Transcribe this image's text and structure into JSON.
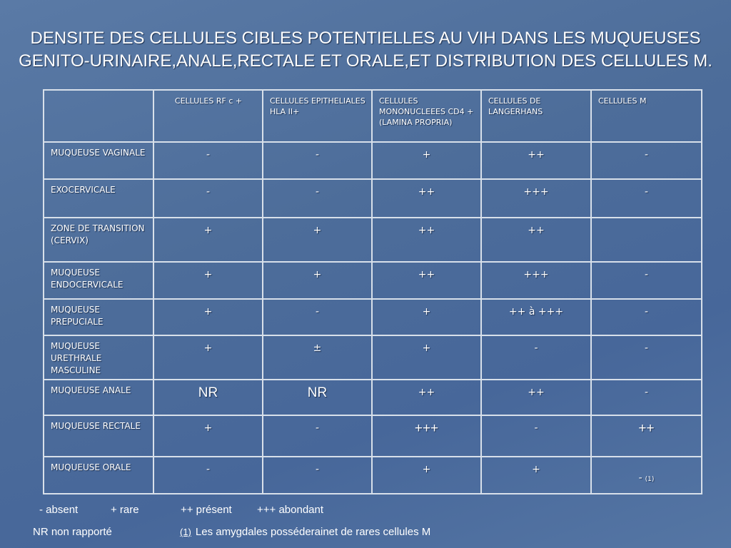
{
  "title": {
    "line1": "DENSITE DES CELLULES CIBLES POTENTIELLES AU VIH DANS LES MUQUEUSES",
    "line2": "GENITO-URINAIRE,ANALE,RECTALE ET ORALE,ET DISTRIBUTION DES CELLULES M."
  },
  "table": {
    "headers": [
      "",
      "CELLULES RF c +",
      "CELLULES EPITHELIALES HLA II+",
      "CELLULES MONONUCLEEES CD4 + (LAMINA PROPRIA)",
      "CELLULES DE LANGERHANS",
      "CELLULES M"
    ],
    "rows": [
      {
        "label": "MUQUEUSE VAGINALE",
        "values": [
          "-",
          "-",
          "+",
          "++",
          "-"
        ]
      },
      {
        "label": "EXOCERVICALE",
        "values": [
          "-",
          "-",
          "++",
          "+++",
          "-"
        ]
      },
      {
        "label": "ZONE DE TRANSITION (CERVIX)",
        "values": [
          "+",
          "+",
          "++",
          "++",
          ""
        ]
      },
      {
        "label": "MUQUEUSE ENDOCERVICALE",
        "values": [
          "+",
          "+",
          "++",
          "+++",
          "-"
        ]
      },
      {
        "label": "MUQUEUSE PREPUCIALE",
        "values": [
          "+",
          "-",
          "+",
          "++ à +++",
          "-"
        ]
      },
      {
        "label": "MUQUEUSE URETHRALE MASCULINE",
        "values": [
          "+",
          "±",
          "+",
          "-",
          "-"
        ]
      },
      {
        "label": "MUQUEUSE ANALE",
        "values": [
          "NR",
          "NR",
          "++",
          "++",
          "-"
        ]
      },
      {
        "label": "MUQUEUSE RECTALE",
        "values": [
          "+",
          "-",
          "+++",
          "-",
          "++"
        ]
      },
      {
        "label": "MUQUEUSE ORALE",
        "values": [
          "-",
          "-",
          "+",
          "+",
          "-"
        ],
        "last_note": "(1)"
      }
    ]
  },
  "legend": {
    "absent": "- absent",
    "rare": "+ rare",
    "present": "++ présent",
    "abondant": "+++ abondant",
    "nr": "NR non rapporté",
    "note_num": "(1)",
    "note_text": "Les amygdales posséderainet de rares cellules M"
  }
}
